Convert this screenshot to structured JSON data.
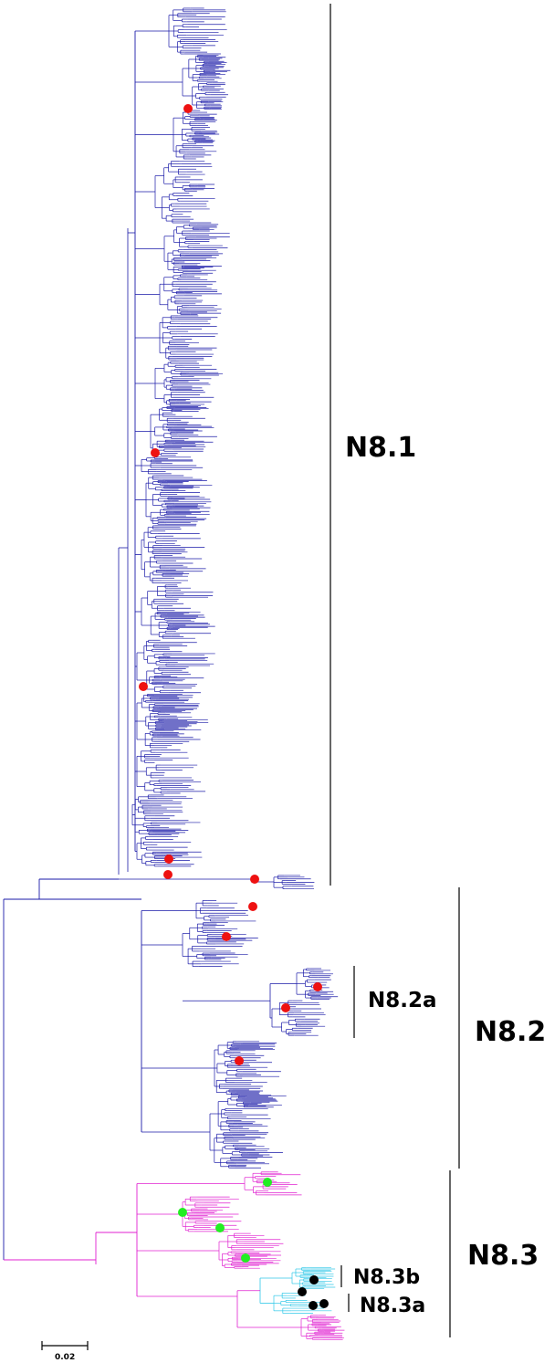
{
  "tree": {
    "clades": [
      {
        "id": "n81",
        "label": "N8.1",
        "color": "#1a1aa8"
      },
      {
        "id": "n82",
        "label": "N8.2",
        "color": "#1a1aa8"
      },
      {
        "id": "n82a",
        "label": "N8.2a",
        "color": "#1a1aa8"
      },
      {
        "id": "n83",
        "label": "N8.3",
        "color": "#e020d0"
      },
      {
        "id": "n83a",
        "label": "N8.3a",
        "color": "#30c8e8"
      },
      {
        "id": "n83b",
        "label": "N8.3b",
        "color": "#30c8e8"
      }
    ],
    "marker_colors": {
      "red": "#ee1111",
      "green": "#22ee22",
      "black": "#000000"
    }
  },
  "scale_bar": {
    "label": "0.02"
  }
}
